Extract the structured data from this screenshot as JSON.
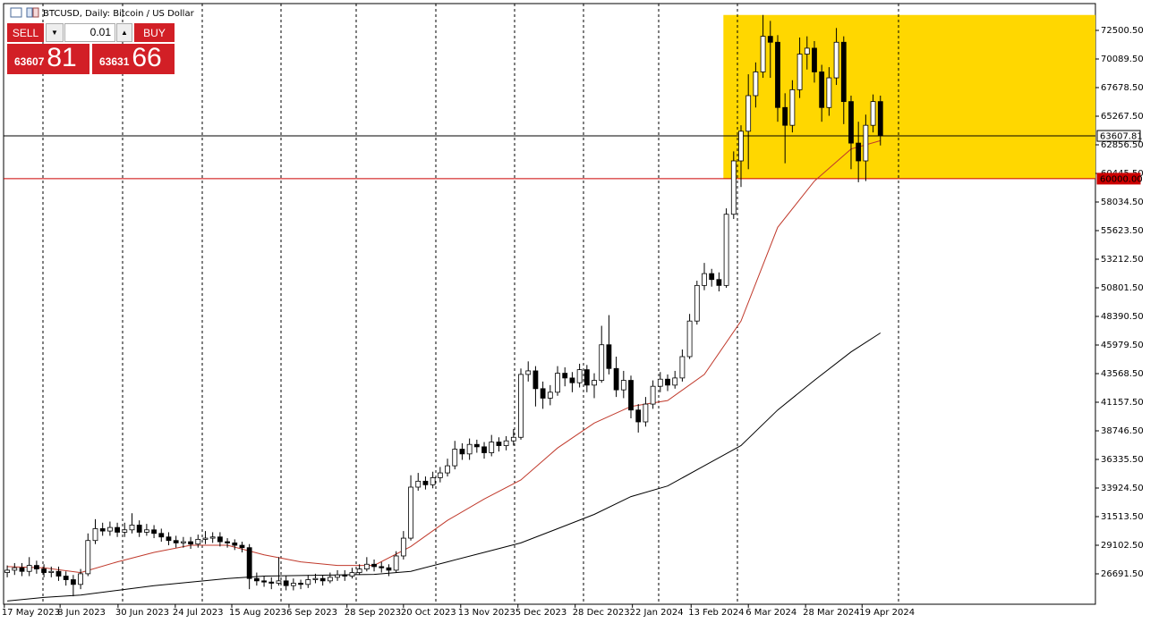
{
  "header": {
    "title": "BTCUSD, Daily:  Bitcoin / US Dollar"
  },
  "trade_panel": {
    "sell": "SELL",
    "buy": "BUY",
    "volume": "0.01",
    "bid_main": "63607",
    "bid_pips": "81",
    "ask_main": "63631",
    "ask_pips": "66"
  },
  "chart_data": {
    "type": "candlestick",
    "up_color": "#ffffff",
    "down_color": "#000000",
    "outline_color": "#000000",
    "open": [
      26800,
      27000,
      27200,
      26900,
      27400,
      27100,
      26800,
      26900,
      26500,
      26200,
      25800,
      26700,
      29500,
      30500,
      30300,
      30600,
      30200,
      30400,
      30800,
      30200,
      30400,
      30100,
      29800,
      29500,
      29300,
      29400,
      29200,
      29600,
      29700,
      29800,
      29400,
      29300,
      29100,
      28900,
      26300,
      26100,
      26000,
      25900,
      26100,
      25700,
      25900,
      25800,
      26200,
      26300,
      26100,
      26400,
      26600,
      26500,
      26800,
      27100,
      27500,
      27300,
      27200,
      27000,
      28200,
      29700,
      34000,
      34500,
      34200,
      34800,
      35200,
      35800,
      37200,
      36800,
      37600,
      37400,
      36900,
      37800,
      37500,
      37900,
      38200,
      43500,
      43800,
      42300,
      41500,
      42000,
      43600,
      43200,
      42800,
      43900,
      42600,
      43000,
      46000,
      44000,
      42200,
      43000,
      40500,
      39500,
      41000,
      42500,
      43100,
      42600,
      43200,
      45000,
      48000,
      51000,
      52000,
      51500,
      51000,
      57000,
      61500,
      64000,
      67000,
      69000,
      72000,
      71500,
      66000,
      64500,
      67500,
      70500,
      71000,
      69000,
      66000,
      68500,
      71500,
      66500,
      63000,
      61500,
      64500,
      66500
    ],
    "high": [
      27400,
      27600,
      27600,
      28100,
      27800,
      27500,
      27300,
      27300,
      26900,
      26600,
      27100,
      30100,
      31300,
      31000,
      31100,
      31000,
      31000,
      31800,
      31200,
      30900,
      30800,
      30500,
      30200,
      29900,
      29800,
      29800,
      30000,
      30300,
      30200,
      30200,
      29700,
      29600,
      29400,
      29200,
      26800,
      26500,
      26400,
      28100,
      26500,
      26300,
      26200,
      26600,
      26700,
      26600,
      26800,
      27000,
      27000,
      27200,
      27500,
      28100,
      27900,
      27700,
      27500,
      28600,
      30300,
      35000,
      35200,
      34900,
      35300,
      35700,
      36400,
      37900,
      37700,
      38100,
      38000,
      37800,
      38400,
      38200,
      38300,
      38900,
      44000,
      44600,
      44200,
      42900,
      42600,
      44200,
      44100,
      43700,
      44400,
      44300,
      43600,
      47600,
      48500,
      45000,
      43800,
      43400,
      41000,
      41600,
      43000,
      43700,
      43500,
      43800,
      45600,
      48600,
      51400,
      52900,
      52400,
      52100,
      57500,
      62300,
      64500,
      68800,
      69800,
      73800,
      73300,
      72100,
      67200,
      68300,
      71900,
      72000,
      71600,
      69600,
      69400,
      72700,
      72000,
      67000,
      64800,
      65400,
      67100,
      67000
    ],
    "low": [
      26400,
      26600,
      26500,
      26500,
      26700,
      26400,
      26400,
      26100,
      25700,
      24800,
      25400,
      26500,
      29200,
      29900,
      29900,
      29800,
      29800,
      30100,
      29800,
      29900,
      29700,
      29400,
      29100,
      28900,
      28900,
      28800,
      28900,
      29200,
      29300,
      29000,
      28900,
      28700,
      28500,
      25400,
      25700,
      25600,
      25400,
      25700,
      25300,
      25300,
      25400,
      25500,
      25900,
      25700,
      25900,
      26100,
      26100,
      26300,
      26600,
      26900,
      26900,
      26800,
      26500,
      26800,
      27900,
      29500,
      33700,
      33800,
      33900,
      34400,
      34900,
      35500,
      36300,
      36300,
      36900,
      36400,
      36600,
      37000,
      37100,
      37500,
      38000,
      42900,
      40800,
      40600,
      40900,
      41700,
      42500,
      42000,
      42400,
      42000,
      41500,
      42800,
      43500,
      41600,
      41500,
      39800,
      38600,
      39100,
      40600,
      42000,
      42100,
      42300,
      42900,
      44800,
      47700,
      50600,
      50900,
      50500,
      50800,
      56600,
      59300,
      60800,
      66000,
      68500,
      68500,
      64800,
      61300,
      63900,
      66800,
      69200,
      68100,
      64800,
      65300,
      67900,
      64600,
      60800,
      59700,
      59800,
      63900,
      62800
    ],
    "close": [
      27000,
      27200,
      26900,
      27400,
      27100,
      26800,
      26900,
      26500,
      26200,
      25800,
      26700,
      29500,
      30500,
      30300,
      30600,
      30200,
      30400,
      30800,
      30200,
      30400,
      30100,
      29800,
      29500,
      29300,
      29400,
      29200,
      29600,
      29700,
      29800,
      29400,
      29300,
      29100,
      28900,
      26300,
      26100,
      26000,
      25900,
      26100,
      25700,
      25900,
      25800,
      26200,
      26300,
      26100,
      26400,
      26600,
      26500,
      26800,
      27100,
      27500,
      27300,
      27200,
      27000,
      28200,
      29700,
      34000,
      34500,
      34200,
      34800,
      35200,
      35800,
      37200,
      36800,
      37600,
      37400,
      36900,
      37800,
      37500,
      37900,
      38200,
      43500,
      43800,
      42300,
      41500,
      42000,
      43600,
      43200,
      42800,
      43900,
      42600,
      43000,
      46000,
      44000,
      42200,
      43000,
      40500,
      39500,
      41000,
      42500,
      43100,
      42600,
      43200,
      45000,
      48000,
      51000,
      52000,
      51500,
      51000,
      57000,
      61500,
      64000,
      67000,
      69000,
      72000,
      71500,
      66000,
      64500,
      67500,
      70500,
      71000,
      69000,
      66000,
      68500,
      71500,
      66500,
      63000,
      61500,
      64500,
      66500,
      63608
    ],
    "series": [
      {
        "color": "#c0392b",
        "x": [
          0,
          5,
          10,
          15,
          20,
          25,
          30,
          35,
          40,
          45,
          50,
          55,
          60,
          65,
          70,
          75,
          80,
          85,
          90,
          95,
          100,
          105,
          110,
          115,
          119
        ],
        "values": [
          27300,
          27200,
          26800,
          27700,
          28500,
          29100,
          29100,
          28300,
          27700,
          27400,
          27400,
          29000,
          31200,
          33000,
          34600,
          37300,
          39400,
          40800,
          41300,
          43500,
          48000,
          55900,
          59800,
          62500,
          63200
        ]
      },
      {
        "color": "#000000",
        "x": [
          0,
          5,
          10,
          15,
          20,
          25,
          30,
          35,
          40,
          45,
          50,
          55,
          60,
          65,
          70,
          75,
          80,
          85,
          90,
          95,
          100,
          105,
          110,
          115,
          119
        ],
        "values": [
          24400,
          24700,
          24900,
          25300,
          25700,
          26000,
          26300,
          26500,
          26550,
          26600,
          26650,
          26900,
          27700,
          28500,
          29300,
          30500,
          31700,
          33200,
          34100,
          35800,
          37500,
          40500,
          43000,
          45400,
          47000
        ]
      }
    ],
    "xlim": [
      -0.5,
      148.3
    ],
    "xticks": [
      {
        "value": -0.4,
        "label": "17 May 2023"
      },
      {
        "value": 7.2,
        "label": "8 Jun 2023"
      },
      {
        "value": 15.1,
        "label": "30 Jun 2023"
      },
      {
        "value": 22.9,
        "label": "24 Jul 2023"
      },
      {
        "value": 30.6,
        "label": "15 Aug 2023"
      },
      {
        "value": 38.4,
        "label": "6 Sep 2023"
      },
      {
        "value": 46.3,
        "label": "28 Sep 2023"
      },
      {
        "value": 54,
        "label": "20 Oct 2023"
      },
      {
        "value": 61.8,
        "label": "13 Nov 2023"
      },
      {
        "value": 69.6,
        "label": "5 Dec 2023"
      },
      {
        "value": 77.4,
        "label": "28 Dec 2023"
      },
      {
        "value": 85.2,
        "label": "22 Jan 2024"
      },
      {
        "value": 93.2,
        "label": "13 Feb 2024"
      },
      {
        "value": 101,
        "label": "6 Mar 2024"
      },
      {
        "value": 108.8,
        "label": "28 Mar 2024"
      },
      {
        "value": 116.5,
        "label": "19 Apr 2024"
      }
    ],
    "ylim": [
      24130,
      74760
    ],
    "yticks": [
      {
        "value": 72500.5,
        "label": "72500.50"
      },
      {
        "value": 70089.5,
        "label": "70089.50"
      },
      {
        "value": 67678.5,
        "label": "67678.50"
      },
      {
        "value": 65267.5,
        "label": "65267.50"
      },
      {
        "value": 62856.5,
        "label": "62856.50"
      },
      {
        "value": 60445.5,
        "label": "60445.50"
      },
      {
        "value": 58034.5,
        "label": "58034.50"
      },
      {
        "value": 55623.5,
        "label": "55623.50"
      },
      {
        "value": 53212.5,
        "label": "53212.50"
      },
      {
        "value": 50801.5,
        "label": "50801.50"
      },
      {
        "value": 48390.5,
        "label": "48390.50"
      },
      {
        "value": 45979.5,
        "label": "45979.50"
      },
      {
        "value": 43568.5,
        "label": "43568.50"
      },
      {
        "value": 41157.5,
        "label": "41157.50"
      },
      {
        "value": 38746.5,
        "label": "38746.50"
      },
      {
        "value": 36335.5,
        "label": "36335.50"
      },
      {
        "value": 33924.5,
        "label": "33924.50"
      },
      {
        "value": 31513.5,
        "label": "31513.50"
      },
      {
        "value": 29102.5,
        "label": "29102.50"
      },
      {
        "value": 26691.5,
        "label": "26691.50"
      }
    ],
    "highlight_zone": {
      "x_from": 97.6,
      "y_from": 60000,
      "y_to": 73800,
      "color": "#ffd700"
    },
    "price_lines": [
      {
        "value": 63607.81,
        "label": "63607.81",
        "color": "#000000"
      },
      {
        "value": 60000,
        "label": "60000.00",
        "color": "#cc0000"
      }
    ]
  }
}
